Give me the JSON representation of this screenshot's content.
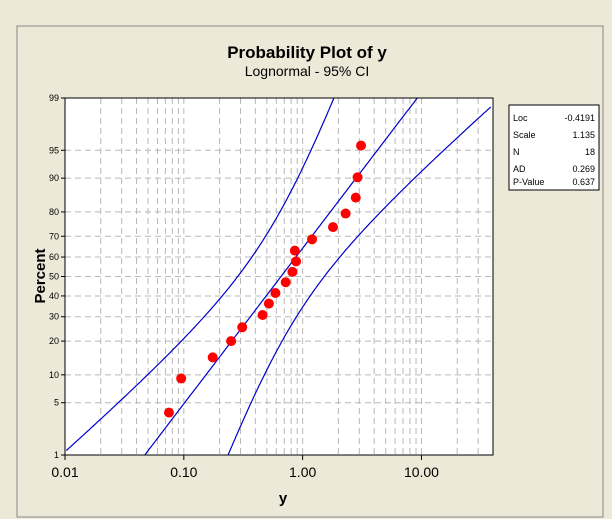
{
  "chart_data": {
    "type": "scatter",
    "title": "Probability Plot of y",
    "subtitle": "Lognormal - 95% CI",
    "xlabel": "y",
    "ylabel": "Percent",
    "x_scale": "log",
    "y_scale": "normal-probability",
    "xlim": [
      0.01,
      40
    ],
    "ylim": [
      1,
      99
    ],
    "x_ticks": [
      0.01,
      0.1,
      1,
      10
    ],
    "x_tick_labels": [
      "0.01",
      "0.10",
      "1.00",
      "10.00"
    ],
    "y_ticks": [
      1,
      5,
      10,
      20,
      30,
      40,
      50,
      60,
      70,
      80,
      90,
      95,
      99
    ],
    "y_tick_labels": [
      "1",
      "5",
      "10",
      "20",
      "30",
      "40",
      "50",
      "60",
      "70",
      "80",
      "90",
      "95",
      "99"
    ],
    "grid": true,
    "points": [
      {
        "x": 0.075,
        "y": 3.8
      },
      {
        "x": 0.095,
        "y": 9.2
      },
      {
        "x": 0.175,
        "y": 14.6
      },
      {
        "x": 0.25,
        "y": 20.0
      },
      {
        "x": 0.31,
        "y": 25.4
      },
      {
        "x": 0.46,
        "y": 30.8
      },
      {
        "x": 0.52,
        "y": 36.2
      },
      {
        "x": 0.59,
        "y": 41.5
      },
      {
        "x": 0.72,
        "y": 47.0
      },
      {
        "x": 0.82,
        "y": 52.4
      },
      {
        "x": 0.88,
        "y": 57.8
      },
      {
        "x": 0.86,
        "y": 63.2
      },
      {
        "x": 1.2,
        "y": 68.6
      },
      {
        "x": 1.8,
        "y": 74.0
      },
      {
        "x": 2.3,
        "y": 79.4
      },
      {
        "x": 2.8,
        "y": 84.8
      },
      {
        "x": 2.9,
        "y": 90.2
      },
      {
        "x": 3.1,
        "y": 95.6
      }
    ],
    "fit": {
      "loc": -0.4191,
      "scale": 1.135
    },
    "ci_level": 0.95,
    "legend_position": "top-right"
  },
  "stats": [
    {
      "label": "Loc",
      "value": "-0.4191"
    },
    {
      "label": "Scale",
      "value": "1.135"
    },
    {
      "label": "N",
      "value": "18"
    },
    {
      "label": "AD",
      "value": "0.269"
    },
    {
      "label": "P-Value",
      "value": "0.637"
    }
  ],
  "colors": {
    "outer_background": "#ece9d8",
    "plot_background": "#ffffff",
    "point": "#ff0000",
    "line": "#0000cc",
    "grid": "#b8b8b8"
  }
}
